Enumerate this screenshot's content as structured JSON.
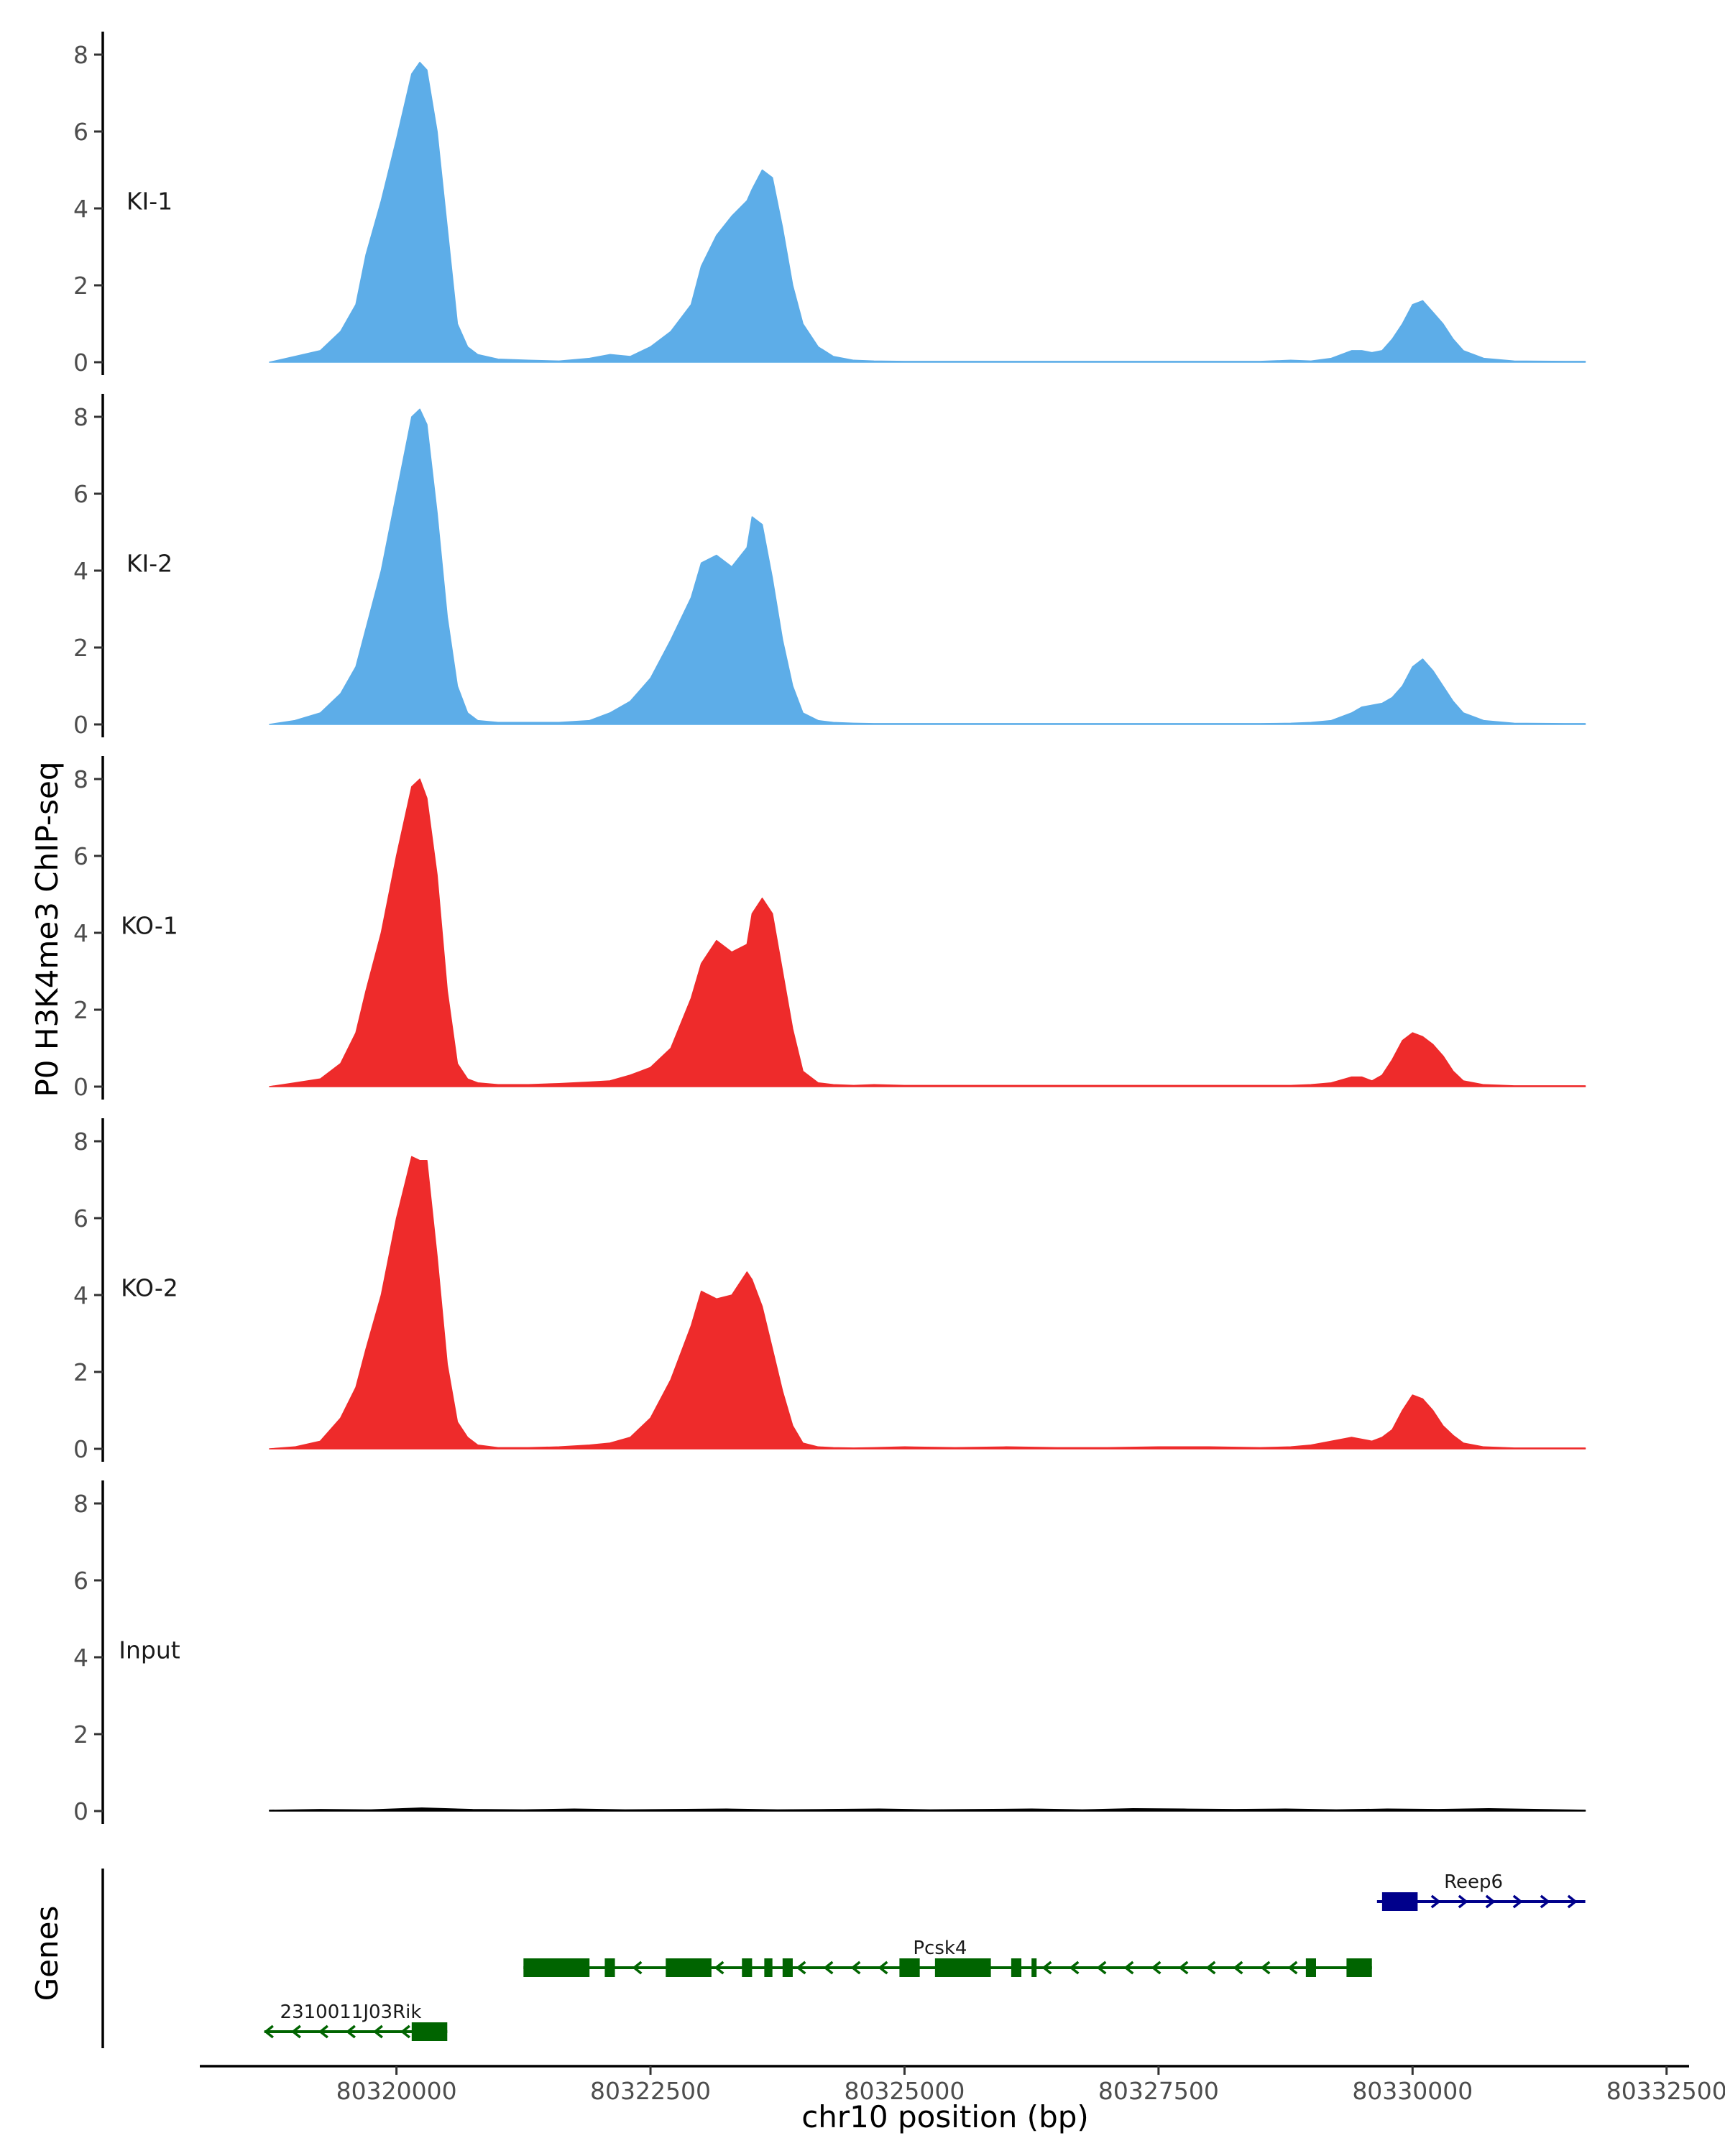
{
  "chart_data": {
    "type": "area",
    "title": "",
    "ylabel": "P0 H3K4me3 ChIP-seq",
    "xlabel": "chr10 position (bp)",
    "xlim": [
      80318100,
      80332700
    ],
    "ylim": [
      0,
      8.5
    ],
    "yticks": [
      0,
      2,
      4,
      6,
      8
    ],
    "xticks": [
      80320000,
      80322500,
      80325000,
      80327500,
      80330000,
      80332500
    ],
    "xtick_labels": [
      "80320000",
      "80322500",
      "80325000",
      "80327500",
      "80330000",
      "80332500"
    ],
    "signal_range": [
      80319750,
      80332650
    ],
    "genes_label": "Genes",
    "tracks": [
      {
        "name": "KI-1",
        "color": "#5dade8",
        "x": [
          80318750,
          80319000,
          80319250,
          80319450,
          80319600,
          80319700,
          80319850,
          80320000,
          80320150,
          80320230,
          80320300,
          80320400,
          80320500,
          80320600,
          80320700,
          80320800,
          80321000,
          80321300,
          80321600,
          80321900,
          80322100,
          80322300,
          80322500,
          80322700,
          80322900,
          80323000,
          80323150,
          80323300,
          80323450,
          80323500,
          80323600,
          80323700,
          80323800,
          80323900,
          80324000,
          80324150,
          80324300,
          80324500,
          80324700,
          80325000,
          80325500,
          80326000,
          80326500,
          80327000,
          80327500,
          80328000,
          80328500,
          80328800,
          80329000,
          80329200,
          80329400,
          80329500,
          80329600,
          80329700,
          80329800,
          80329900,
          80330000,
          80330100,
          80330200,
          80330300,
          80330400,
          80330500,
          80330700,
          80331000,
          80331500,
          80331700
        ],
        "y": [
          0,
          0.15,
          0.3,
          0.8,
          1.5,
          2.8,
          4.2,
          5.8,
          7.5,
          7.8,
          7.6,
          6.0,
          3.5,
          1.0,
          0.4,
          0.2,
          0.08,
          0.05,
          0.03,
          0.1,
          0.2,
          0.15,
          0.4,
          0.8,
          1.5,
          2.5,
          3.3,
          3.8,
          4.2,
          4.5,
          5.0,
          4.8,
          3.5,
          2.0,
          1.0,
          0.4,
          0.15,
          0.05,
          0.03,
          0.02,
          0.02,
          0.02,
          0.02,
          0.02,
          0.02,
          0.02,
          0.02,
          0.05,
          0.03,
          0.1,
          0.3,
          0.3,
          0.25,
          0.3,
          0.6,
          1.0,
          1.5,
          1.6,
          1.3,
          1.0,
          0.6,
          0.3,
          0.1,
          0.03,
          0.02,
          0.02
        ]
      },
      {
        "name": "KI-2",
        "color": "#5dade8",
        "x": [
          80318750,
          80319000,
          80319250,
          80319450,
          80319600,
          80319700,
          80319850,
          80320000,
          80320150,
          80320230,
          80320300,
          80320400,
          80320500,
          80320600,
          80320700,
          80320800,
          80321000,
          80321300,
          80321600,
          80321900,
          80322100,
          80322300,
          80322500,
          80322700,
          80322900,
          80323000,
          80323150,
          80323300,
          80323450,
          80323500,
          80323600,
          80323700,
          80323800,
          80323900,
          80324000,
          80324150,
          80324300,
          80324500,
          80324700,
          80325000,
          80325500,
          80326000,
          80326500,
          80327000,
          80327500,
          80328000,
          80328500,
          80328800,
          80329000,
          80329200,
          80329400,
          80329500,
          80329600,
          80329700,
          80329800,
          80329900,
          80330000,
          80330100,
          80330200,
          80330300,
          80330400,
          80330500,
          80330700,
          80331000,
          80331500,
          80331700
        ],
        "y": [
          0,
          0.1,
          0.3,
          0.8,
          1.5,
          2.5,
          4.0,
          6.0,
          8.0,
          8.2,
          7.8,
          5.5,
          2.8,
          1.0,
          0.3,
          0.1,
          0.05,
          0.05,
          0.05,
          0.1,
          0.3,
          0.6,
          1.2,
          2.2,
          3.3,
          4.2,
          4.4,
          4.1,
          4.6,
          5.4,
          5.2,
          3.8,
          2.2,
          1.0,
          0.3,
          0.1,
          0.05,
          0.03,
          0.02,
          0.02,
          0.02,
          0.02,
          0.02,
          0.02,
          0.02,
          0.02,
          0.02,
          0.03,
          0.05,
          0.1,
          0.3,
          0.45,
          0.5,
          0.55,
          0.7,
          1.0,
          1.5,
          1.7,
          1.4,
          1.0,
          0.6,
          0.3,
          0.1,
          0.03,
          0.02,
          0.02
        ]
      },
      {
        "name": "KO-1",
        "color": "#ee2b2b",
        "x": [
          80318750,
          80319000,
          80319250,
          80319450,
          80319600,
          80319700,
          80319850,
          80320000,
          80320150,
          80320230,
          80320300,
          80320400,
          80320500,
          80320600,
          80320700,
          80320800,
          80321000,
          80321300,
          80321600,
          80321900,
          80322100,
          80322300,
          80322500,
          80322700,
          80322900,
          80323000,
          80323150,
          80323300,
          80323450,
          80323500,
          80323600,
          80323700,
          80323800,
          80323900,
          80324000,
          80324150,
          80324300,
          80324500,
          80324700,
          80325000,
          80325500,
          80326000,
          80326500,
          80327000,
          80327500,
          80328000,
          80328500,
          80328800,
          80329000,
          80329200,
          80329400,
          80329500,
          80329600,
          80329700,
          80329800,
          80329900,
          80330000,
          80330100,
          80330200,
          80330300,
          80330400,
          80330500,
          80330700,
          80331000,
          80331500,
          80331700
        ],
        "y": [
          0,
          0.1,
          0.2,
          0.6,
          1.4,
          2.5,
          4.0,
          6.0,
          7.8,
          8.0,
          7.5,
          5.5,
          2.5,
          0.6,
          0.2,
          0.1,
          0.05,
          0.05,
          0.08,
          0.12,
          0.15,
          0.3,
          0.5,
          1.0,
          2.3,
          3.2,
          3.8,
          3.5,
          3.7,
          4.5,
          4.9,
          4.5,
          3.0,
          1.5,
          0.4,
          0.1,
          0.05,
          0.03,
          0.05,
          0.03,
          0.03,
          0.03,
          0.03,
          0.03,
          0.03,
          0.03,
          0.03,
          0.03,
          0.05,
          0.1,
          0.25,
          0.25,
          0.15,
          0.3,
          0.7,
          1.2,
          1.4,
          1.3,
          1.1,
          0.8,
          0.4,
          0.15,
          0.05,
          0.02,
          0.02,
          0.02
        ]
      },
      {
        "name": "KO-2",
        "color": "#ee2b2b",
        "x": [
          80318750,
          80319000,
          80319250,
          80319450,
          80319600,
          80319700,
          80319850,
          80320000,
          80320150,
          80320230,
          80320300,
          80320400,
          80320500,
          80320600,
          80320700,
          80320800,
          80321000,
          80321300,
          80321600,
          80321900,
          80322100,
          80322300,
          80322500,
          80322700,
          80322900,
          80323000,
          80323150,
          80323300,
          80323450,
          80323500,
          80323600,
          80323700,
          80323800,
          80323900,
          80324000,
          80324150,
          80324300,
          80324500,
          80324700,
          80325000,
          80325500,
          80326000,
          80326500,
          80327000,
          80327500,
          80328000,
          80328500,
          80328800,
          80329000,
          80329200,
          80329400,
          80329500,
          80329600,
          80329700,
          80329800,
          80329900,
          80330000,
          80330100,
          80330200,
          80330300,
          80330400,
          80330500,
          80330700,
          80331000,
          80331500,
          80331700
        ],
        "y": [
          0,
          0.05,
          0.2,
          0.8,
          1.6,
          2.6,
          4.0,
          6.0,
          7.6,
          7.5,
          7.5,
          5.0,
          2.2,
          0.7,
          0.3,
          0.1,
          0.03,
          0.03,
          0.05,
          0.1,
          0.15,
          0.3,
          0.8,
          1.8,
          3.2,
          4.1,
          3.9,
          4.0,
          4.6,
          4.4,
          3.7,
          2.6,
          1.5,
          0.6,
          0.15,
          0.05,
          0.03,
          0.02,
          0.03,
          0.05,
          0.03,
          0.05,
          0.03,
          0.03,
          0.05,
          0.05,
          0.03,
          0.05,
          0.1,
          0.2,
          0.3,
          0.25,
          0.2,
          0.3,
          0.5,
          1.0,
          1.4,
          1.3,
          1.0,
          0.6,
          0.35,
          0.15,
          0.05,
          0.02,
          0.02,
          0.02
        ]
      },
      {
        "name": "Input",
        "color": "#000000",
        "x": [
          80318750,
          80319250,
          80319750,
          80320250,
          80320750,
          80321250,
          80321750,
          80322250,
          80322750,
          80323250,
          80323750,
          80324250,
          80324750,
          80325250,
          80325750,
          80326250,
          80326750,
          80327250,
          80327750,
          80328250,
          80328750,
          80329250,
          80329750,
          80330250,
          80330750,
          80331250,
          80331700
        ],
        "y": [
          0.02,
          0.04,
          0.03,
          0.08,
          0.04,
          0.03,
          0.05,
          0.03,
          0.04,
          0.05,
          0.03,
          0.04,
          0.05,
          0.03,
          0.04,
          0.05,
          0.03,
          0.06,
          0.05,
          0.04,
          0.05,
          0.03,
          0.05,
          0.04,
          0.06,
          0.04,
          0.02
        ]
      }
    ],
    "genes": [
      {
        "name": "Reep6",
        "color": "#00008b",
        "strand": "+",
        "start": 80329650,
        "end": 80331700,
        "exons": [
          [
            80329700,
            80330050
          ]
        ],
        "label_pos": 80330600
      },
      {
        "name": "Pcsk4",
        "color": "#006400",
        "strand": "-",
        "start": 80321250,
        "end": 80329600,
        "exons": [
          [
            80321250,
            80321900
          ],
          [
            80322050,
            80322150
          ],
          [
            80322650,
            80323100
          ],
          [
            80323400,
            80323500
          ],
          [
            80323620,
            80323700
          ],
          [
            80323800,
            80323900
          ],
          [
            80324950,
            80325150
          ],
          [
            80325300,
            80325850
          ],
          [
            80326050,
            80326150
          ],
          [
            80326250,
            80326300
          ],
          [
            80328950,
            80329050
          ],
          [
            80329350,
            80329600
          ]
        ],
        "label_pos": 80325350
      },
      {
        "name": "2310011J03Rik",
        "color": "#006400",
        "strand": "-",
        "start": 80318700,
        "end": 80320500,
        "exons": [
          [
            80320150,
            80320500
          ]
        ],
        "label_pos": 80319550
      }
    ]
  }
}
